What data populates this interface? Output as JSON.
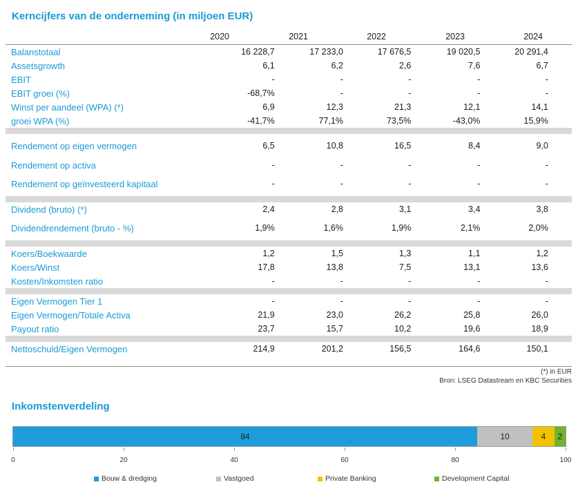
{
  "title": "Kerncijfers van de onderneming (in miljoen EUR)",
  "years": [
    "2020",
    "2021",
    "2022",
    "2023",
    "2024"
  ],
  "groups": [
    [
      {
        "label": "Balanstotaal",
        "values": [
          "16 228,7",
          "17 233,0",
          "17 676,5",
          "19 020,5",
          "20 291,4"
        ]
      },
      {
        "label": "Assetsgrowth",
        "values": [
          "6,1",
          "6,2",
          "2,6",
          "7,6",
          "6,7"
        ]
      },
      {
        "label": "EBIT",
        "values": [
          "-",
          "-",
          "-",
          "-",
          "-"
        ]
      },
      {
        "label": "EBIT groei (%)",
        "values": [
          "-68,7%",
          "-",
          "-",
          "-",
          "-"
        ]
      },
      {
        "label": "Winst per aandeel (WPA) (*)",
        "values": [
          "6,9",
          "12,3",
          "21,3",
          "12,1",
          "14,1"
        ]
      },
      {
        "label": "groei WPA (%)",
        "values": [
          "-41,7%",
          "77,1%",
          "73,5%",
          "-43,0%",
          "15,9%"
        ]
      }
    ],
    [
      {
        "label": "Rendement op eigen vermogen",
        "values": [
          "6,5",
          "10,8",
          "16,5",
          "8,4",
          "9,0"
        ],
        "tall": true
      },
      {
        "label": "Rendement op activa",
        "values": [
          "-",
          "-",
          "-",
          "-",
          "-"
        ]
      },
      {
        "label": "Rendement op geïnvesteerd kapitaal",
        "values": [
          "-",
          "-",
          "-",
          "-",
          "-"
        ],
        "tall": true
      }
    ],
    [
      {
        "label": "Dividend (bruto) (*)",
        "values": [
          "2,4",
          "2,8",
          "3,1",
          "3,4",
          "3,8"
        ]
      },
      {
        "label": "Dividendrendement (bruto - %)",
        "values": [
          "1,9%",
          "1,6%",
          "1,9%",
          "2,1%",
          "2,0%"
        ],
        "tall": true
      }
    ],
    [
      {
        "label": "Koers/Boekwaarde",
        "values": [
          "1,2",
          "1,5",
          "1,3",
          "1,1",
          "1,2"
        ]
      },
      {
        "label": "Koers/Winst",
        "values": [
          "17,8",
          "13,8",
          "7,5",
          "13,1",
          "13,6"
        ]
      },
      {
        "label": "Kosten/Inkomsten ratio",
        "values": [
          "-",
          "-",
          "-",
          "-",
          "-"
        ]
      }
    ],
    [
      {
        "label": "Eigen Vermogen Tier 1",
        "values": [
          "-",
          "-",
          "-",
          "-",
          "-"
        ]
      },
      {
        "label": "Eigen Vermogen/Totale Activa",
        "values": [
          "21,9",
          "23,0",
          "26,2",
          "25,8",
          "26,0"
        ]
      },
      {
        "label": "Payout ratio",
        "values": [
          "23,7",
          "15,7",
          "10,2",
          "19,6",
          "18,9"
        ]
      }
    ],
    [
      {
        "label": "Nettoschuld/Eigen Vermogen",
        "values": [
          "214,9",
          "201,2",
          "156,5",
          "164,6",
          "150,1"
        ]
      }
    ]
  ],
  "footnote": "(*) in EUR",
  "source": "Bron: LSEG Datastream en KBC Securities",
  "chart_data": {
    "type": "bar",
    "title": "Inkomstenverdeling",
    "orientation": "horizontal-stacked",
    "series": [
      {
        "name": "Bouw & dredging",
        "values": [
          84
        ],
        "label": "84",
        "color": "#1f9ddb"
      },
      {
        "name": "Vastgoed",
        "values": [
          10
        ],
        "label": "10",
        "color": "#c0c0c0"
      },
      {
        "name": "Private Banking",
        "values": [
          4
        ],
        "label": "4",
        "color": "#f0c300"
      },
      {
        "name": "Development Capital",
        "values": [
          2
        ],
        "label": "2",
        "color": "#6fb52c"
      }
    ],
    "xlim": [
      0,
      100
    ],
    "xticks": [
      "0",
      "20",
      "40",
      "60",
      "80",
      "100"
    ],
    "legend_position": "bottom"
  }
}
